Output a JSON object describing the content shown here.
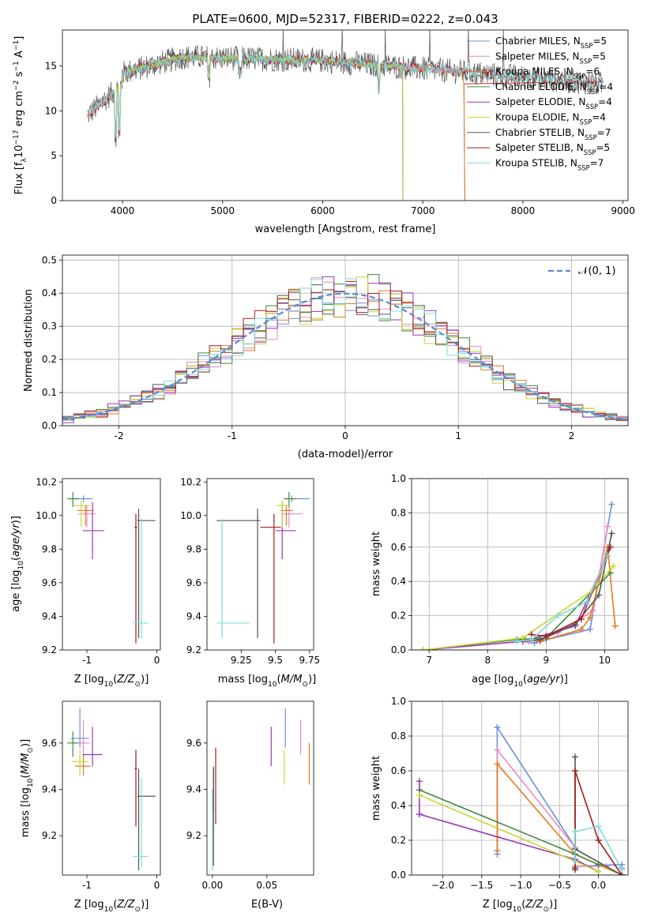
{
  "title": "PLATE=0600, MJD=52317, FIBERID=0222, z=0.043",
  "colors": {
    "Chabrier MILES": "#6b8fdc",
    "Salpeter MILES": "#e889c4",
    "Kroupa MILES": "#e07b22",
    "Chabrier ELODIE": "#3f8a3a",
    "Salpeter ELODIE": "#9b36b7",
    "Kroupa ELODIE": "#c6d832",
    "Chabrier STELIB": "#555555",
    "Salpeter STELIB": "#a51c1c",
    "Kroupa STELIB": "#7fdadb",
    "normal_curve": "#5b87d6"
  },
  "chart_data": [
    {
      "id": "spectrum",
      "type": "line",
      "xlabel": "wavelength [Angstrom, rest frame]",
      "ylabel": "Flux [f_λ 10^-17 erg cm^-2 s^-1 A^-1]",
      "xlim": [
        3400,
        9050
      ],
      "ylim": [
        0,
        19
      ],
      "xticks": [
        4000,
        5000,
        6000,
        7000,
        8000,
        9000
      ],
      "yticks": [
        0,
        5,
        10,
        15
      ],
      "legend_position": "upper right",
      "series": [
        {
          "name": "Chabrier MILES",
          "nssp": "5",
          "range": [
            3650,
            7400
          ]
        },
        {
          "name": "Salpeter MILES",
          "nssp": "5",
          "range": [
            3650,
            7400
          ]
        },
        {
          "name": "Kroupa MILES",
          "nssp": "6",
          "range": [
            3650,
            7400
          ]
        },
        {
          "name": "Chabrier ELODIE",
          "nssp": "4",
          "range": [
            3900,
            6800
          ]
        },
        {
          "name": "Salpeter ELODIE",
          "nssp": "4",
          "range": [
            3900,
            6800
          ]
        },
        {
          "name": "Kroupa ELODIE",
          "nssp": "4",
          "range": [
            3900,
            6800
          ]
        },
        {
          "name": "Chabrier STELIB",
          "nssp": "7",
          "range": [
            3650,
            8800
          ]
        },
        {
          "name": "Salpeter STELIB",
          "nssp": "5",
          "range": [
            3650,
            8800
          ]
        },
        {
          "name": "Kroupa STELIB",
          "nssp": "7",
          "range": [
            3650,
            8800
          ]
        }
      ]
    },
    {
      "id": "residuals",
      "type": "histogram",
      "xlabel": "(data-model)/error",
      "ylabel": "Normed distribution",
      "xlim": [
        -2.5,
        2.5
      ],
      "ylim": [
        0,
        0.515
      ],
      "xticks": [
        -2,
        -1,
        0,
        1,
        2
      ],
      "yticks": [
        0.0,
        0.1,
        0.2,
        0.3,
        0.4,
        0.5
      ],
      "grid": true,
      "legend": "𝒩(0, 1)",
      "legend_position": "upper right",
      "bin_width": 0.1
    },
    {
      "id": "age_vs_Z",
      "type": "errorbar",
      "xlabel": "Z [log10(Z/Z☉)]",
      "ylabel": "age [log10(age/yr)]",
      "xlim": [
        -1.35,
        0.05
      ],
      "ylim": [
        9.2,
        10.22
      ],
      "xticks": [
        -1,
        0
      ],
      "yticks": [
        9.2,
        9.4,
        9.6,
        9.8,
        10.0,
        10.2
      ],
      "points": [
        {
          "model": "Chabrier MILES",
          "x": -1.05,
          "xerr": [
            0.15,
            0.13
          ],
          "y": 10.1,
          "yerr": [
            0.02,
            0.02
          ]
        },
        {
          "model": "Salpeter MILES",
          "x": -1.0,
          "xerr": [
            0.12,
            0.12
          ],
          "y": 10.01,
          "yerr": [
            0.08,
            0.05
          ]
        },
        {
          "model": "Kroupa MILES",
          "x": -1.02,
          "xerr": [
            0.12,
            0.12
          ],
          "y": 10.03,
          "yerr": [
            0.09,
            0.03
          ]
        },
        {
          "model": "Chabrier ELODIE",
          "x": -1.2,
          "xerr": [
            0.08,
            0.08
          ],
          "y": 10.1,
          "yerr": [
            0.05,
            0.04
          ]
        },
        {
          "model": "Salpeter ELODIE",
          "x": -0.92,
          "xerr": [
            0.14,
            0.17
          ],
          "y": 9.91,
          "yerr": [
            0.17,
            0.17
          ]
        },
        {
          "model": "Kroupa ELODIE",
          "x": -1.08,
          "xerr": [
            0.12,
            0.12
          ],
          "y": 10.06,
          "yerr": [
            0.13,
            0.03
          ]
        },
        {
          "model": "Chabrier STELIB",
          "x": -0.26,
          "xerr": [
            0.02,
            0.24
          ],
          "y": 9.97,
          "yerr": [
            0.7,
            0.07
          ]
        },
        {
          "model": "Salpeter STELIB",
          "x": -0.3,
          "xerr": [
            0.02,
            0.02
          ],
          "y": 9.93,
          "yerr": [
            0.69,
            0.08
          ]
        },
        {
          "model": "Kroupa STELIB",
          "x": -0.22,
          "xerr": [
            0.12,
            0.1
          ],
          "y": 9.36,
          "yerr": [
            0.09,
            0.62
          ]
        }
      ]
    },
    {
      "id": "age_vs_mass",
      "type": "errorbar",
      "xlabel": "mass [log10(M/M☉)]",
      "xlim": [
        9.0,
        9.78
      ],
      "ylim": [
        9.2,
        10.22
      ],
      "xticks": [
        9.25,
        9.5,
        9.75
      ],
      "yticks": [
        9.2,
        9.4,
        9.6,
        9.8,
        10.0,
        10.2
      ],
      "points": [
        {
          "model": "Chabrier MILES",
          "x": 9.62,
          "xerr": [
            0.04,
            0.13
          ],
          "y": 10.1,
          "yerr": [
            0.02,
            0.02
          ]
        },
        {
          "model": "Salpeter MILES",
          "x": 9.6,
          "xerr": [
            0.05,
            0.1
          ],
          "y": 10.01,
          "yerr": [
            0.08,
            0.05
          ]
        },
        {
          "model": "Kroupa MILES",
          "x": 9.58,
          "xerr": [
            0.04,
            0.05
          ],
          "y": 10.03,
          "yerr": [
            0.09,
            0.03
          ]
        },
        {
          "model": "Chabrier ELODIE",
          "x": 9.6,
          "xerr": [
            0.04,
            0.05
          ],
          "y": 10.1,
          "yerr": [
            0.05,
            0.04
          ]
        },
        {
          "model": "Salpeter ELODIE",
          "x": 9.55,
          "xerr": [
            0.05,
            0.1
          ],
          "y": 9.91,
          "yerr": [
            0.17,
            0.17
          ]
        },
        {
          "model": "Kroupa ELODIE",
          "x": 9.55,
          "xerr": [
            0.04,
            0.05
          ],
          "y": 10.06,
          "yerr": [
            0.13,
            0.03
          ]
        },
        {
          "model": "Chabrier STELIB",
          "x": 9.37,
          "xerr": [
            0.3,
            0.02
          ],
          "y": 9.97,
          "yerr": [
            0.7,
            0.07
          ]
        },
        {
          "model": "Salpeter STELIB",
          "x": 9.49,
          "xerr": [
            0.1,
            0.05
          ],
          "y": 9.93,
          "yerr": [
            0.69,
            0.08
          ]
        },
        {
          "model": "Kroupa STELIB",
          "x": 9.11,
          "xerr": [
            0.04,
            0.2
          ],
          "y": 9.36,
          "yerr": [
            0.09,
            0.62
          ]
        }
      ]
    },
    {
      "id": "mass_weight_vs_age",
      "type": "line",
      "xlabel": "age [log10(age/yr)]",
      "ylabel": "mass weight",
      "xlim": [
        6.7,
        10.4
      ],
      "ylim": [
        0,
        1
      ],
      "xticks": [
        7,
        8,
        9,
        10
      ],
      "yticks": [
        0.0,
        0.2,
        0.4,
        0.6,
        0.8,
        1.0
      ],
      "grid": true,
      "series": [
        {
          "name": "Chabrier MILES",
          "x": [
            8.6,
            8.8,
            9.0,
            9.75,
            10.12
          ],
          "y": [
            0.05,
            0.04,
            0.06,
            0.12,
            0.85
          ]
        },
        {
          "name": "Salpeter MILES",
          "x": [
            8.7,
            8.9,
            9.2,
            9.8,
            10.05
          ],
          "y": [
            0.05,
            0.06,
            0.1,
            0.23,
            0.72
          ]
        },
        {
          "name": "Kroupa MILES",
          "x": [
            8.65,
            8.9,
            9.6,
            9.75,
            10.05,
            10.18
          ],
          "y": [
            0.06,
            0.05,
            0.12,
            0.19,
            0.6,
            0.14
          ]
        },
        {
          "name": "Chabrier ELODIE",
          "x": [
            6.9,
            8.5,
            9.0,
            10.1
          ],
          "y": [
            0.0,
            0.06,
            0.07,
            0.45
          ]
        },
        {
          "name": "Salpeter ELODIE",
          "x": [
            6.9,
            8.6,
            9.5,
            10.05
          ],
          "y": [
            0.0,
            0.05,
            0.14,
            0.55
          ]
        },
        {
          "name": "Kroupa ELODIE",
          "x": [
            6.9,
            8.6,
            9.8,
            10.15
          ],
          "y": [
            0.0,
            0.07,
            0.35,
            0.49
          ]
        },
        {
          "name": "Chabrier STELIB",
          "x": [
            8.5,
            8.9,
            9.5,
            9.9,
            10.12
          ],
          "y": [
            0.05,
            0.06,
            0.15,
            0.32,
            0.68
          ]
        },
        {
          "name": "Salpeter STELIB",
          "x": [
            8.75,
            9.0,
            9.6,
            10.1
          ],
          "y": [
            0.09,
            0.08,
            0.18,
            0.6
          ]
        },
        {
          "name": "Kroupa STELIB",
          "x": [
            8.5,
            8.75,
            9.2,
            9.7,
            10.05
          ],
          "y": [
            0.05,
            0.06,
            0.2,
            0.28,
            0.55
          ]
        }
      ]
    },
    {
      "id": "mass_vs_Z",
      "type": "errorbar",
      "xlabel": "Z [log10(Z/Z☉)]",
      "ylabel": "mass [log10(M/M☉)]",
      "xlim": [
        -1.35,
        0.05
      ],
      "ylim": [
        9.03,
        9.78
      ],
      "xticks": [
        -1,
        0
      ],
      "yticks": [
        9.2,
        9.4,
        9.6
      ],
      "points": [
        {
          "model": "Chabrier MILES",
          "x": -1.1,
          "xerr": [
            0.13,
            0.13
          ],
          "y": 9.62,
          "yerr": [
            0.04,
            0.13
          ]
        },
        {
          "model": "Salpeter MILES",
          "x": -1.05,
          "xerr": [
            0.1,
            0.1
          ],
          "y": 9.6,
          "yerr": [
            0.05,
            0.1
          ]
        },
        {
          "model": "Kroupa MILES",
          "x": -1.05,
          "xerr": [
            0.12,
            0.1
          ],
          "y": 9.5,
          "yerr": [
            0.04,
            0.05
          ]
        },
        {
          "model": "Chabrier ELODIE",
          "x": -1.2,
          "xerr": [
            0.08,
            0.08
          ],
          "y": 9.6,
          "yerr": [
            0.06,
            0.05
          ]
        },
        {
          "model": "Salpeter ELODIE",
          "x": -0.92,
          "xerr": [
            0.14,
            0.14
          ],
          "y": 9.55,
          "yerr": [
            0.05,
            0.12
          ]
        },
        {
          "model": "Kroupa ELODIE",
          "x": -1.1,
          "xerr": [
            0.12,
            0.12
          ],
          "y": 9.52,
          "yerr": [
            0.06,
            0.05
          ]
        },
        {
          "model": "Chabrier STELIB",
          "x": -0.26,
          "xerr": [
            0.02,
            0.24
          ],
          "y": 9.37,
          "yerr": [
            0.32,
            0.12
          ]
        },
        {
          "model": "Salpeter STELIB",
          "x": -0.3,
          "xerr": [
            0.02,
            0.02
          ],
          "y": 9.49,
          "yerr": [
            0.25,
            0.08
          ]
        },
        {
          "model": "Kroupa STELIB",
          "x": -0.22,
          "xerr": [
            0.12,
            0.1
          ],
          "y": 9.11,
          "yerr": [
            0.05,
            0.34
          ]
        }
      ]
    },
    {
      "id": "mass_vs_ebv",
      "type": "errorbar",
      "xlabel": "E(B-V)",
      "xlim": [
        -0.005,
        0.093
      ],
      "ylim": [
        9.03,
        9.78
      ],
      "xticks": [
        0.0,
        0.05
      ],
      "yticks": [
        9.2,
        9.4,
        9.6
      ],
      "points": [
        {
          "model": "Chabrier MILES",
          "x": 0.067,
          "xerr": [
            0,
            0
          ],
          "y": 9.62,
          "yerr": [
            0.04,
            0.13
          ]
        },
        {
          "model": "Salpeter MILES",
          "x": 0.081,
          "xerr": [
            0,
            0
          ],
          "y": 9.6,
          "yerr": [
            0.05,
            0.1
          ]
        },
        {
          "model": "Kroupa MILES",
          "x": 0.089,
          "xerr": [
            0,
            0
          ],
          "y": 9.5,
          "yerr": [
            0.08,
            0.1
          ]
        },
        {
          "model": "Chabrier ELODIE",
          "x": 0.001,
          "xerr": [
            0,
            0
          ],
          "y": 9.4,
          "yerr": [
            0.1,
            0.1
          ]
        },
        {
          "model": "Salpeter ELODIE",
          "x": 0.054,
          "xerr": [
            0,
            0
          ],
          "y": 9.55,
          "yerr": [
            0.05,
            0.12
          ]
        },
        {
          "model": "Kroupa ELODIE",
          "x": 0.066,
          "xerr": [
            0,
            0
          ],
          "y": 9.52,
          "yerr": [
            0.1,
            0.05
          ]
        },
        {
          "model": "Chabrier STELIB",
          "x": 0.001,
          "xerr": [
            0,
            0
          ],
          "y": 9.37,
          "yerr": [
            0.3,
            0.12
          ]
        },
        {
          "model": "Salpeter STELIB",
          "x": 0.003,
          "xerr": [
            0,
            0
          ],
          "y": 9.4,
          "yerr": [
            0.15,
            0.18
          ]
        },
        {
          "model": "Kroupa STELIB",
          "x": 0.0,
          "xerr": [
            0,
            0
          ],
          "y": 9.2,
          "yerr": [
            0.15,
            0.2
          ]
        }
      ]
    },
    {
      "id": "mass_weight_vs_Z",
      "type": "line",
      "xlabel": "Z [log10(Z/Z☉)]",
      "ylabel": "mass weight",
      "xlim": [
        -2.4,
        0.38
      ],
      "ylim": [
        0,
        1
      ],
      "xticks": [
        -2.0,
        -1.5,
        -1.0,
        -0.5,
        0.0
      ],
      "yticks": [
        0.0,
        0.2,
        0.4,
        0.6,
        0.8,
        1.0
      ],
      "grid": true,
      "series": [
        {
          "name": "Chabrier MILES",
          "x": [
            -1.3,
            -1.3,
            -0.3,
            -0.3,
            0.3,
            0.3
          ],
          "y": [
            0.12,
            0.85,
            0.16,
            0.05,
            0.06,
            0.04
          ]
        },
        {
          "name": "Salpeter MILES",
          "x": [
            -1.3,
            -1.3,
            -0.3,
            -0.3,
            0.1
          ],
          "y": [
            0.22,
            0.72,
            0.16,
            0.05,
            0.05
          ]
        },
        {
          "name": "Kroupa MILES",
          "x": [
            -1.3,
            -1.3,
            -0.3,
            0.3
          ],
          "y": [
            0.14,
            0.64,
            0.12,
            0.0
          ]
        },
        {
          "name": "Chabrier ELODIE",
          "x": [
            -2.3,
            -0.3,
            0.0
          ],
          "y": [
            0.49,
            0.12,
            0.06
          ]
        },
        {
          "name": "Salpeter ELODIE",
          "x": [
            -2.3,
            -2.3,
            -0.3,
            0.0
          ],
          "y": [
            0.54,
            0.35,
            0.09,
            0.02
          ]
        },
        {
          "name": "Kroupa ELODIE",
          "x": [
            -2.3,
            -0.3,
            0.0
          ],
          "y": [
            0.46,
            0.08,
            0.02
          ]
        },
        {
          "name": "Chabrier STELIB",
          "x": [
            -0.3,
            -0.3,
            -0.3,
            0.3
          ],
          "y": [
            0.68,
            0.03,
            0.15,
            0.0
          ]
        },
        {
          "name": "Salpeter STELIB",
          "x": [
            -0.3,
            -0.3,
            0.0,
            0.3
          ],
          "y": [
            0.04,
            0.6,
            0.2,
            0.0
          ]
        },
        {
          "name": "Kroupa STELIB",
          "x": [
            -0.3,
            -0.3,
            0.0,
            0.3
          ],
          "y": [
            0.08,
            0.25,
            0.28,
            0.03
          ]
        }
      ]
    }
  ]
}
